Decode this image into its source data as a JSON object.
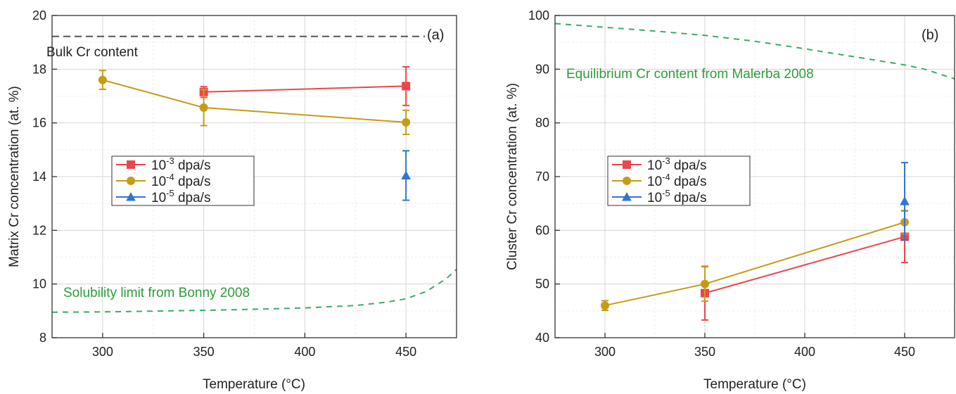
{
  "chart_data": [
    {
      "type": "line",
      "panel_label": "(a)",
      "xlabel": "Temperature (°C)",
      "ylabel": "Matrix Cr concentration (at. %)",
      "xlim": [
        275,
        475
      ],
      "ylim": [
        8,
        20
      ],
      "xticks": [
        300,
        350,
        400,
        450
      ],
      "yticks": [
        8,
        10,
        12,
        14,
        16,
        18,
        20
      ],
      "grid": true,
      "legend_position": "center-left",
      "series": [
        {
          "name": "10⁻³ dpa/s",
          "base": "10",
          "exp": "-3",
          "unit": " dpa/s",
          "color": "#e8474c",
          "marker": "square",
          "x": [
            350,
            450
          ],
          "y": [
            17.15,
            17.37
          ],
          "err": [
            0.2,
            0.72
          ]
        },
        {
          "name": "10⁻⁴ dpa/s",
          "base": "10",
          "exp": "-4",
          "unit": " dpa/s",
          "color": "#c89b16",
          "marker": "circle",
          "x": [
            300,
            350,
            450
          ],
          "y": [
            17.6,
            16.57,
            16.02
          ],
          "err": [
            0.35,
            0.67,
            0.45
          ]
        },
        {
          "name": "10⁻⁵ dpa/s",
          "base": "10",
          "exp": "-5",
          "unit": " dpa/s",
          "color": "#2e76d3",
          "marker": "triangle",
          "x": [
            450
          ],
          "y": [
            14.04
          ],
          "err": [
            0.92
          ]
        }
      ],
      "reference_lines": [
        {
          "label": "Bulk Cr content",
          "style": "dashed",
          "color": "#555555",
          "x": [
            275,
            475
          ],
          "y": [
            19.22,
            19.22
          ]
        },
        {
          "label": "Solubility limit from Bonny 2008",
          "style": "dashed",
          "color": "#3dab6a",
          "x": [
            275,
            300,
            325,
            350,
            375,
            400,
            425,
            440,
            450,
            460,
            470,
            475
          ],
          "y": [
            8.95,
            8.96,
            8.99,
            9.02,
            9.06,
            9.11,
            9.2,
            9.32,
            9.45,
            9.72,
            10.2,
            10.55
          ]
        }
      ]
    },
    {
      "type": "line",
      "panel_label": "(b)",
      "xlabel": "Temperature (°C)",
      "ylabel": "Cluster Cr concentration (at. %)",
      "xlim": [
        275,
        475
      ],
      "ylim": [
        40,
        100
      ],
      "xticks": [
        300,
        350,
        400,
        450
      ],
      "yticks": [
        40,
        50,
        60,
        70,
        80,
        90,
        100
      ],
      "grid": true,
      "legend_position": "center-left",
      "series": [
        {
          "name": "10⁻³ dpa/s",
          "base": "10",
          "exp": "-3",
          "unit": " dpa/s",
          "color": "#e8474c",
          "marker": "square",
          "x": [
            350,
            450
          ],
          "y": [
            48.3,
            58.8
          ],
          "err": [
            5.0,
            4.8
          ]
        },
        {
          "name": "10⁻⁴ dpa/s",
          "base": "10",
          "exp": "-4",
          "unit": " dpa/s",
          "color": "#c89b16",
          "marker": "circle",
          "x": [
            300,
            350,
            450
          ],
          "y": [
            46.0,
            50.0,
            61.5
          ],
          "err": [
            0.9,
            3.2,
            2.2
          ]
        },
        {
          "name": "10⁻⁵ dpa/s",
          "base": "10",
          "exp": "-5",
          "unit": " dpa/s",
          "color": "#2e76d3",
          "marker": "triangle",
          "x": [
            450
          ],
          "y": [
            65.4
          ],
          "err": [
            7.2
          ]
        }
      ],
      "reference_lines": [
        {
          "label": "Equilibrium Cr content from Malerba 2008",
          "style": "dashed",
          "color": "#3dab6a",
          "x": [
            275,
            300,
            325,
            350,
            375,
            400,
            425,
            450,
            460,
            475
          ],
          "y": [
            98.5,
            97.8,
            97.1,
            96.3,
            95.2,
            93.8,
            92.3,
            90.8,
            90.0,
            88.2
          ]
        }
      ]
    }
  ]
}
